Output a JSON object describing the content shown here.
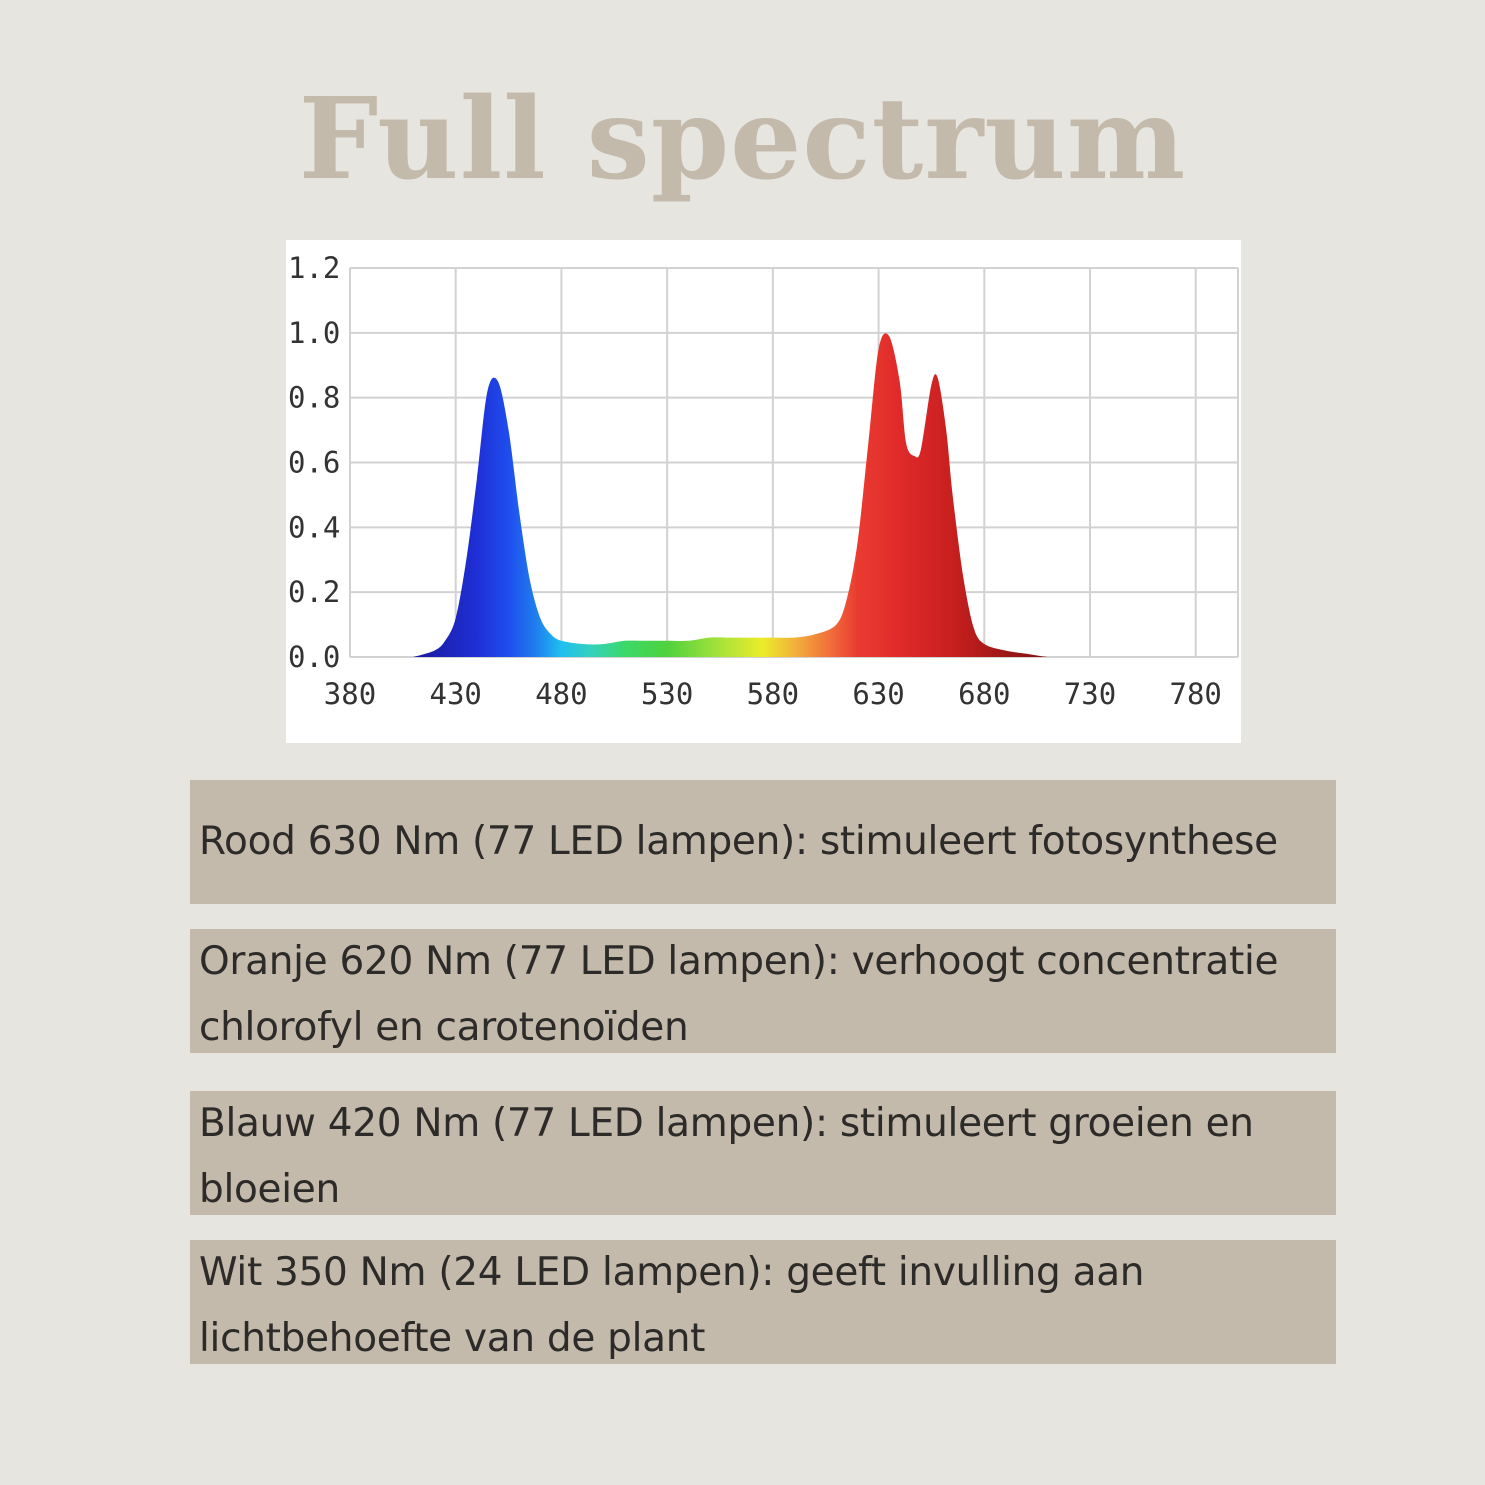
{
  "title": "Full spectrum",
  "chart_data": {
    "type": "area",
    "xlim": [
      380,
      800
    ],
    "ylim": [
      0,
      1.2
    ],
    "x_ticks": [
      "380",
      "430",
      "480",
      "530",
      "580",
      "630",
      "680",
      "730",
      "780"
    ],
    "y_ticks": [
      "0.0",
      "0.2",
      "0.4",
      "0.6",
      "0.8",
      "1.0",
      "1.2"
    ],
    "grid": true,
    "fill": "wavelength-colored spectrum",
    "x": [
      410,
      420,
      425,
      430,
      435,
      440,
      445,
      450,
      455,
      460,
      465,
      470,
      475,
      480,
      490,
      500,
      510,
      520,
      530,
      540,
      550,
      560,
      570,
      580,
      590,
      600,
      610,
      615,
      620,
      625,
      630,
      635,
      640,
      643,
      647,
      650,
      655,
      658,
      662,
      665,
      670,
      675,
      680,
      690,
      700,
      710,
      720
    ],
    "values": [
      0.0,
      0.02,
      0.05,
      0.12,
      0.3,
      0.55,
      0.82,
      0.85,
      0.7,
      0.45,
      0.24,
      0.12,
      0.07,
      0.05,
      0.04,
      0.04,
      0.05,
      0.05,
      0.05,
      0.05,
      0.06,
      0.06,
      0.06,
      0.06,
      0.06,
      0.07,
      0.1,
      0.18,
      0.35,
      0.65,
      0.95,
      0.99,
      0.85,
      0.66,
      0.62,
      0.64,
      0.84,
      0.86,
      0.7,
      0.5,
      0.25,
      0.09,
      0.04,
      0.02,
      0.01,
      0.0,
      0.0
    ]
  },
  "info_items": [
    {
      "text": "Rood 630 Nm (77 LED lampen): stimuleert fotosynthese"
    },
    {
      "text": "Oranje 620 Nm (77 LED lampen): verhoogt concentratie chlorofyl en carotenoïden"
    },
    {
      "text": "Blauw 420 Nm (77 LED lampen): stimuleert groeien en bloeien"
    },
    {
      "text": "Wit 350 Nm (24 LED lampen): geeft invulling aan lichtbehoefte van de plant"
    }
  ]
}
